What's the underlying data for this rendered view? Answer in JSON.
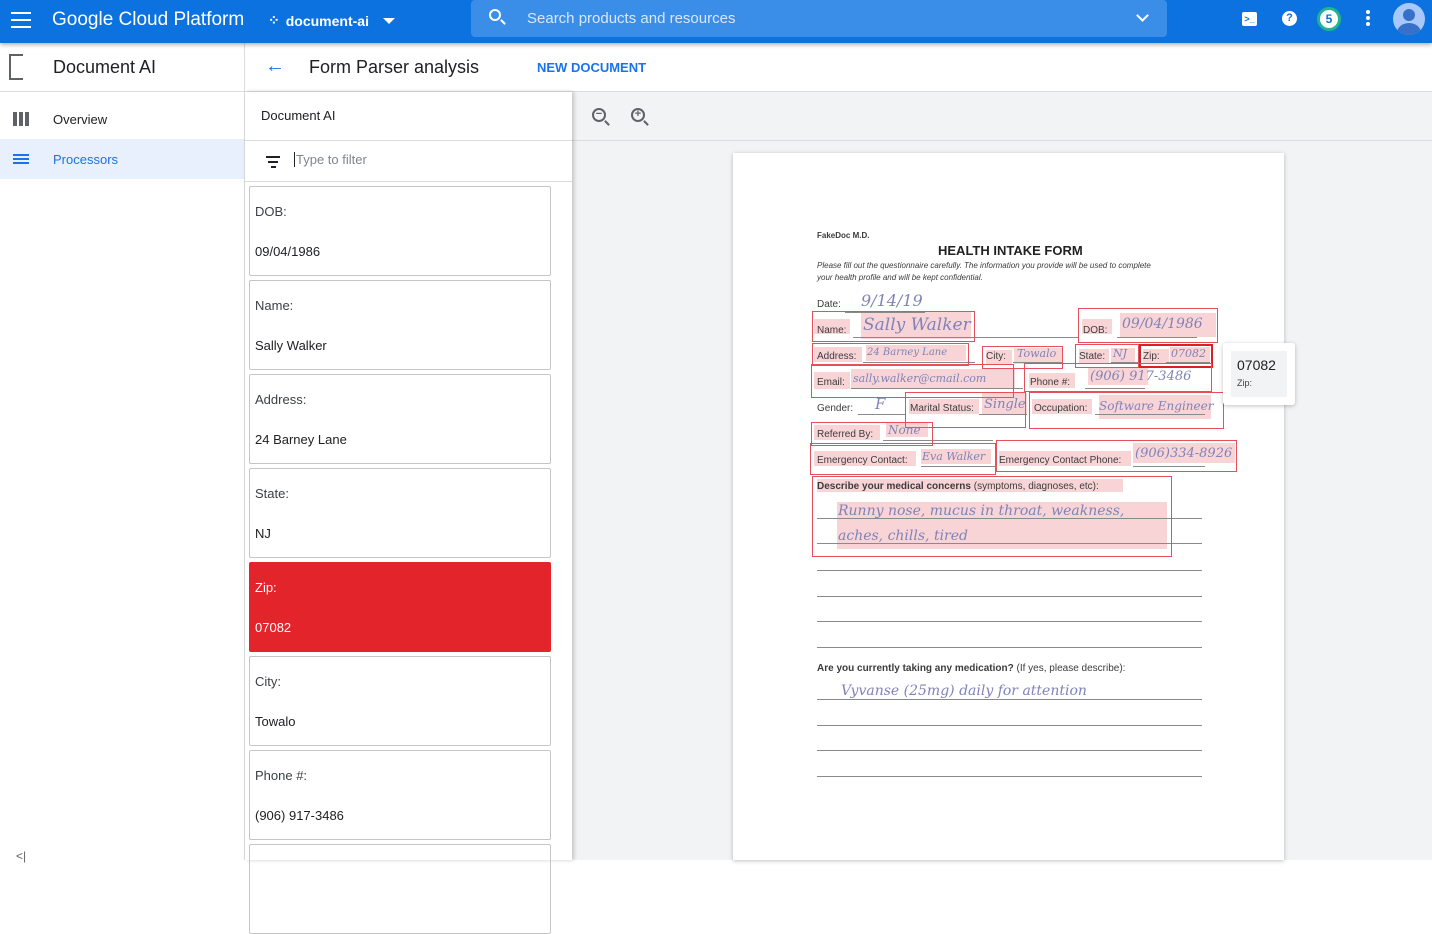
{
  "topbar": {
    "brand": "Google Cloud Platform",
    "project": "document-ai",
    "search_placeholder": "Search products and resources",
    "notifications_count": "5",
    "accent": "#0b72e0"
  },
  "sidebar": {
    "title": "Document AI",
    "items": [
      {
        "label": "Overview",
        "icon": "dashboard-icon"
      },
      {
        "label": "Processors",
        "icon": "processors-icon",
        "selected": true
      }
    ],
    "collapse": "<|"
  },
  "header": {
    "back": "←",
    "title": "Form Parser analysis",
    "new_document": "NEW DOCUMENT"
  },
  "panel": {
    "title": "Document AI",
    "filter_placeholder": "Type to filter",
    "fields": [
      {
        "key": "DOB:",
        "value": "09/04/1986"
      },
      {
        "key": "Name:",
        "value": "Sally Walker"
      },
      {
        "key": "Address:",
        "value": "24 Barney Lane"
      },
      {
        "key": "State:",
        "value": "NJ"
      },
      {
        "key": "Zip:",
        "value": "07082",
        "selected": true
      },
      {
        "key": "City:",
        "value": "Towalo"
      },
      {
        "key": "Phone #:",
        "value": "(906) 917-3486"
      }
    ],
    "selected_color": "#e3242b"
  },
  "viewer": {
    "zoom_out": "−",
    "zoom_in": "+"
  },
  "document": {
    "org": "FakeDoc M.D.",
    "title": "HEALTH INTAKE FORM",
    "instructions1": "Please fill out the questionnaire carefully. The information you provide will be used to complete",
    "instructions2": "your health profile and will be kept confidential.",
    "date_label": "Date:",
    "date": "9/14/19",
    "name_label": "Name:",
    "name": "Sally Walker",
    "dob_label": "DOB:",
    "dob": "09/04/1986",
    "address_label": "Address:",
    "address": "24 Barney Lane",
    "city_label": "City:",
    "city": "Towalo",
    "state_label": "State:",
    "state": "NJ",
    "zip_label": "Zip:",
    "zip": "07082",
    "email_label": "Email:",
    "email": "sally.walker@cmail.com",
    "phone_label": "Phone #:",
    "phone": "(906) 917-3486",
    "gender_label": "Gender:",
    "gender": "F",
    "marital_label": "Marital Status:",
    "marital": "Single",
    "occupation_label": "Occupation:",
    "occupation": "Software Engineer",
    "referred_label": "Referred By:",
    "referred": "None",
    "ec_label": "Emergency Contact:",
    "ec": "Eva Walker",
    "ecp_label": "Emergency Contact Phone:",
    "ecp": "(906)334-8926",
    "concerns_label": "Describe your medical concerns",
    "concerns_hint": "(symptoms, diagnoses, etc):",
    "concerns1": "Runny nose, mucus in throat, weakness,",
    "concerns2": "aches, chills, tired",
    "med_label": "Are you currently taking any medication?",
    "med_hint": "(If yes, please describe):",
    "med": "Vyvanse (25mg) daily for attention"
  },
  "tooltip": {
    "value": "07082",
    "key": "Zip:"
  }
}
